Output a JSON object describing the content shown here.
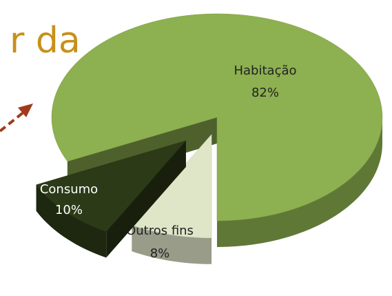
{
  "chart_data": {
    "type": "pie",
    "title": "r da",
    "categories": [
      "Habitação",
      "Outros fins",
      "Consumo"
    ],
    "values": [
      82,
      8,
      10
    ],
    "value_labels": [
      "82%",
      "8%",
      "10%"
    ],
    "colors": [
      "#8db050",
      "#dfe6c8",
      "#2c3a18"
    ]
  }
}
